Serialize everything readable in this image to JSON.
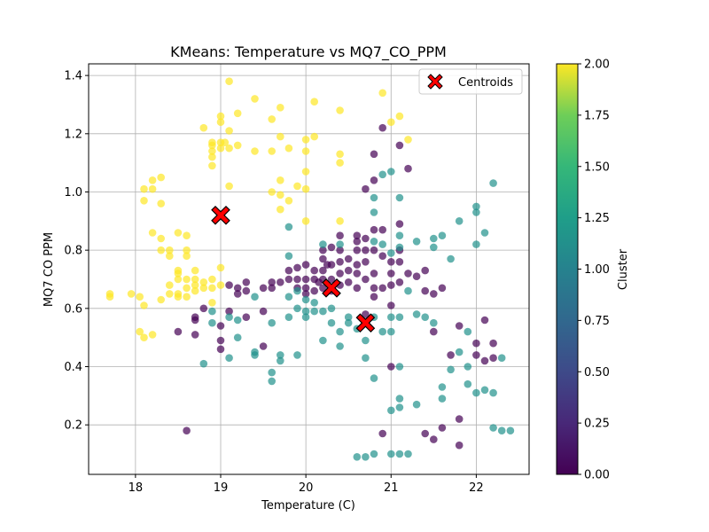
{
  "chart_data": {
    "type": "scatter",
    "title": "KMeans: Temperature vs MQ7_CO_PPM",
    "xlabel": "Temperature (C)",
    "ylabel": "MQ7 CO PPM",
    "xlim": [
      17.45,
      22.62
    ],
    "ylim": [
      0.03,
      1.44
    ],
    "x_ticks": [
      18,
      19,
      20,
      21,
      22
    ],
    "y_ticks": [
      0.2,
      0.4,
      0.6,
      0.8,
      1.0,
      1.2,
      1.4
    ],
    "grid": true,
    "legend_position": "top-right",
    "legend_entries": [
      "Centroids"
    ],
    "colorbar": {
      "label": "Cluster",
      "range": [
        0.0,
        2.0
      ],
      "ticks": [
        "0.00",
        "0.25",
        "0.50",
        "0.75",
        "1.00",
        "1.25",
        "1.50",
        "1.75",
        "2.00"
      ],
      "colormap": "viridis"
    },
    "cluster_colors": {
      "0": "#440154",
      "1": "#21918c",
      "2": "#fde725"
    },
    "centroid_color": "#ff0000",
    "centroids": [
      {
        "x": 20.3,
        "y": 0.67
      },
      {
        "x": 20.7,
        "y": 0.55
      },
      {
        "x": 19.0,
        "y": 0.92
      }
    ],
    "series": [
      {
        "cluster": 2,
        "points": [
          [
            17.7,
            0.65
          ],
          [
            17.7,
            0.64
          ],
          [
            17.95,
            0.65
          ],
          [
            18.05,
            0.64
          ],
          [
            18.05,
            0.52
          ],
          [
            18.1,
            0.61
          ],
          [
            18.1,
            0.5
          ],
          [
            18.2,
            0.51
          ],
          [
            18.1,
            1.01
          ],
          [
            18.1,
            0.97
          ],
          [
            18.2,
            1.01
          ],
          [
            18.2,
            1.04
          ],
          [
            18.2,
            0.86
          ],
          [
            18.3,
            1.05
          ],
          [
            18.3,
            0.96
          ],
          [
            18.3,
            0.84
          ],
          [
            18.3,
            0.8
          ],
          [
            18.3,
            0.63
          ],
          [
            18.4,
            0.8
          ],
          [
            18.4,
            0.78
          ],
          [
            18.4,
            0.68
          ],
          [
            18.4,
            0.65
          ],
          [
            18.5,
            0.86
          ],
          [
            18.5,
            0.73
          ],
          [
            18.5,
            0.72
          ],
          [
            18.5,
            0.7
          ],
          [
            18.5,
            0.65
          ],
          [
            18.5,
            0.64
          ],
          [
            18.6,
            0.85
          ],
          [
            18.6,
            0.8
          ],
          [
            18.6,
            0.78
          ],
          [
            18.6,
            0.7
          ],
          [
            18.6,
            0.67
          ],
          [
            18.6,
            0.64
          ],
          [
            18.7,
            0.73
          ],
          [
            18.7,
            0.7
          ],
          [
            18.7,
            0.68
          ],
          [
            18.7,
            0.66
          ],
          [
            18.8,
            1.22
          ],
          [
            18.8,
            0.69
          ],
          [
            18.8,
            0.67
          ],
          [
            18.9,
            1.17
          ],
          [
            18.9,
            1.16
          ],
          [
            18.9,
            1.14
          ],
          [
            18.9,
            1.12
          ],
          [
            18.9,
            1.09
          ],
          [
            18.9,
            0.7
          ],
          [
            18.9,
            0.67
          ],
          [
            18.9,
            0.62
          ],
          [
            19.0,
            1.26
          ],
          [
            19.0,
            1.24
          ],
          [
            19.0,
            1.17
          ],
          [
            19.0,
            1.15
          ],
          [
            19.0,
            0.74
          ],
          [
            19.0,
            0.68
          ],
          [
            19.05,
            1.17
          ],
          [
            19.1,
            1.38
          ],
          [
            19.1,
            1.21
          ],
          [
            19.1,
            1.15
          ],
          [
            19.1,
            1.02
          ],
          [
            19.2,
            1.27
          ],
          [
            19.2,
            1.16
          ],
          [
            19.4,
            1.32
          ],
          [
            19.4,
            1.14
          ],
          [
            19.6,
            1.25
          ],
          [
            19.6,
            1.14
          ],
          [
            19.6,
            1.0
          ],
          [
            19.7,
            1.29
          ],
          [
            19.7,
            1.19
          ],
          [
            19.7,
            1.04
          ],
          [
            19.7,
            0.99
          ],
          [
            19.7,
            0.94
          ],
          [
            19.8,
            1.15
          ],
          [
            19.8,
            0.97
          ],
          [
            19.9,
            1.02
          ],
          [
            20.0,
            1.18
          ],
          [
            20.0,
            1.14
          ],
          [
            20.0,
            1.07
          ],
          [
            20.0,
            1.01
          ],
          [
            20.0,
            0.9
          ],
          [
            20.1,
            1.31
          ],
          [
            20.1,
            1.19
          ],
          [
            20.4,
            1.28
          ],
          [
            20.4,
            1.13
          ],
          [
            20.4,
            1.1
          ],
          [
            20.4,
            0.9
          ],
          [
            20.9,
            1.34
          ],
          [
            21.0,
            1.24
          ],
          [
            21.1,
            1.26
          ],
          [
            21.2,
            1.18
          ]
        ]
      },
      {
        "cluster": 0,
        "points": [
          [
            18.5,
            0.52
          ],
          [
            18.6,
            0.18
          ],
          [
            18.7,
            0.57
          ],
          [
            18.7,
            0.56
          ],
          [
            18.7,
            0.51
          ],
          [
            18.8,
            0.6
          ],
          [
            19.0,
            0.54
          ],
          [
            19.0,
            0.49
          ],
          [
            19.0,
            0.46
          ],
          [
            19.1,
            0.68
          ],
          [
            19.1,
            0.59
          ],
          [
            19.2,
            0.67
          ],
          [
            19.2,
            0.65
          ],
          [
            19.3,
            0.69
          ],
          [
            19.3,
            0.66
          ],
          [
            19.3,
            0.57
          ],
          [
            19.5,
            0.67
          ],
          [
            19.5,
            0.59
          ],
          [
            19.5,
            0.47
          ],
          [
            19.6,
            0.69
          ],
          [
            19.6,
            0.67
          ],
          [
            19.7,
            0.69
          ],
          [
            19.8,
            0.73
          ],
          [
            19.8,
            0.7
          ],
          [
            19.9,
            0.74
          ],
          [
            19.9,
            0.7
          ],
          [
            19.9,
            0.67
          ],
          [
            20.0,
            0.75
          ],
          [
            20.0,
            0.7
          ],
          [
            20.0,
            0.67
          ],
          [
            20.0,
            0.65
          ],
          [
            20.1,
            0.73
          ],
          [
            20.1,
            0.7
          ],
          [
            20.1,
            0.66
          ],
          [
            20.15,
            0.69
          ],
          [
            20.2,
            0.8
          ],
          [
            20.2,
            0.77
          ],
          [
            20.2,
            0.73
          ],
          [
            20.2,
            0.7
          ],
          [
            20.2,
            0.67
          ],
          [
            20.25,
            0.75
          ],
          [
            20.3,
            0.81
          ],
          [
            20.3,
            0.75
          ],
          [
            20.3,
            0.7
          ],
          [
            20.3,
            0.66
          ],
          [
            20.4,
            0.85
          ],
          [
            20.4,
            0.8
          ],
          [
            20.4,
            0.76
          ],
          [
            20.4,
            0.72
          ],
          [
            20.4,
            0.68
          ],
          [
            20.5,
            0.77
          ],
          [
            20.5,
            0.73
          ],
          [
            20.5,
            0.69
          ],
          [
            20.6,
            0.85
          ],
          [
            20.6,
            0.83
          ],
          [
            20.6,
            0.8
          ],
          [
            20.6,
            0.75
          ],
          [
            20.6,
            0.72
          ],
          [
            20.6,
            0.67
          ],
          [
            20.7,
            1.01
          ],
          [
            20.7,
            0.84
          ],
          [
            20.7,
            0.8
          ],
          [
            20.7,
            0.76
          ],
          [
            20.7,
            0.7
          ],
          [
            20.7,
            0.58
          ],
          [
            20.8,
            1.13
          ],
          [
            20.8,
            1.04
          ],
          [
            20.8,
            0.87
          ],
          [
            20.8,
            0.8
          ],
          [
            20.8,
            0.72
          ],
          [
            20.8,
            0.67
          ],
          [
            20.8,
            0.64
          ],
          [
            20.9,
            1.22
          ],
          [
            20.9,
            0.87
          ],
          [
            20.9,
            0.78
          ],
          [
            20.9,
            0.67
          ],
          [
            20.9,
            0.17
          ],
          [
            21.0,
            0.76
          ],
          [
            21.0,
            0.72
          ],
          [
            21.0,
            0.68
          ],
          [
            21.0,
            0.61
          ],
          [
            21.0,
            0.4
          ],
          [
            21.1,
            1.16
          ],
          [
            21.1,
            0.89
          ],
          [
            21.1,
            0.8
          ],
          [
            21.1,
            0.76
          ],
          [
            21.1,
            0.69
          ],
          [
            21.2,
            1.08
          ],
          [
            21.2,
            0.72
          ],
          [
            21.3,
            0.71
          ],
          [
            21.4,
            0.73
          ],
          [
            21.4,
            0.66
          ],
          [
            21.4,
            0.17
          ],
          [
            21.5,
            0.65
          ],
          [
            21.5,
            0.52
          ],
          [
            21.5,
            0.15
          ],
          [
            21.6,
            0.67
          ],
          [
            21.6,
            0.19
          ],
          [
            21.7,
            0.44
          ],
          [
            21.8,
            0.54
          ],
          [
            21.8,
            0.22
          ],
          [
            21.8,
            0.13
          ],
          [
            22.0,
            0.48
          ],
          [
            22.0,
            0.44
          ],
          [
            22.1,
            0.56
          ],
          [
            22.1,
            0.42
          ],
          [
            22.2,
            0.48
          ],
          [
            22.2,
            0.43
          ]
        ]
      },
      {
        "cluster": 1,
        "points": [
          [
            18.8,
            0.41
          ],
          [
            18.9,
            0.59
          ],
          [
            18.9,
            0.55
          ],
          [
            19.1,
            0.57
          ],
          [
            19.1,
            0.43
          ],
          [
            19.2,
            0.56
          ],
          [
            19.2,
            0.5
          ],
          [
            19.4,
            0.64
          ],
          [
            19.4,
            0.45
          ],
          [
            19.4,
            0.44
          ],
          [
            19.6,
            0.55
          ],
          [
            19.6,
            0.38
          ],
          [
            19.6,
            0.35
          ],
          [
            19.7,
            0.44
          ],
          [
            19.7,
            0.42
          ],
          [
            19.8,
            0.88
          ],
          [
            19.8,
            0.78
          ],
          [
            19.8,
            0.64
          ],
          [
            19.8,
            0.57
          ],
          [
            19.9,
            0.66
          ],
          [
            19.9,
            0.6
          ],
          [
            19.9,
            0.44
          ],
          [
            20.0,
            0.63
          ],
          [
            20.0,
            0.59
          ],
          [
            20.0,
            0.57
          ],
          [
            20.1,
            0.62
          ],
          [
            20.1,
            0.59
          ],
          [
            20.2,
            0.82
          ],
          [
            20.2,
            0.59
          ],
          [
            20.2,
            0.49
          ],
          [
            20.3,
            0.6
          ],
          [
            20.3,
            0.55
          ],
          [
            20.4,
            0.82
          ],
          [
            20.4,
            0.52
          ],
          [
            20.4,
            0.47
          ],
          [
            20.5,
            0.57
          ],
          [
            20.5,
            0.55
          ],
          [
            20.6,
            0.53
          ],
          [
            20.6,
            0.09
          ],
          [
            20.7,
            0.49
          ],
          [
            20.7,
            0.43
          ],
          [
            20.7,
            0.09
          ],
          [
            20.8,
            0.98
          ],
          [
            20.8,
            0.93
          ],
          [
            20.8,
            0.83
          ],
          [
            20.8,
            0.57
          ],
          [
            20.8,
            0.36
          ],
          [
            20.8,
            0.1
          ],
          [
            20.9,
            1.06
          ],
          [
            20.9,
            0.82
          ],
          [
            20.9,
            0.52
          ],
          [
            21.0,
            1.07
          ],
          [
            21.0,
            0.79
          ],
          [
            21.0,
            0.57
          ],
          [
            21.0,
            0.52
          ],
          [
            21.0,
            0.25
          ],
          [
            21.0,
            0.1
          ],
          [
            21.1,
            0.98
          ],
          [
            21.1,
            0.85
          ],
          [
            21.1,
            0.81
          ],
          [
            21.1,
            0.57
          ],
          [
            21.1,
            0.4
          ],
          [
            21.1,
            0.29
          ],
          [
            21.1,
            0.26
          ],
          [
            21.1,
            0.1
          ],
          [
            21.2,
            0.66
          ],
          [
            21.2,
            0.1
          ],
          [
            21.3,
            0.83
          ],
          [
            21.3,
            0.58
          ],
          [
            21.3,
            0.27
          ],
          [
            21.4,
            0.57
          ],
          [
            21.5,
            0.84
          ],
          [
            21.5,
            0.81
          ],
          [
            21.5,
            0.55
          ],
          [
            21.6,
            0.85
          ],
          [
            21.6,
            0.33
          ],
          [
            21.6,
            0.29
          ],
          [
            21.7,
            0.77
          ],
          [
            21.7,
            0.39
          ],
          [
            21.8,
            0.9
          ],
          [
            21.8,
            0.45
          ],
          [
            21.9,
            0.52
          ],
          [
            21.9,
            0.4
          ],
          [
            21.9,
            0.34
          ],
          [
            22.0,
            0.95
          ],
          [
            22.0,
            0.93
          ],
          [
            22.0,
            0.82
          ],
          [
            22.0,
            0.31
          ],
          [
            22.1,
            0.86
          ],
          [
            22.1,
            0.32
          ],
          [
            22.2,
            1.03
          ],
          [
            22.2,
            0.31
          ],
          [
            22.2,
            0.19
          ],
          [
            22.3,
            0.43
          ],
          [
            22.3,
            0.18
          ],
          [
            22.4,
            0.18
          ]
        ]
      }
    ]
  }
}
